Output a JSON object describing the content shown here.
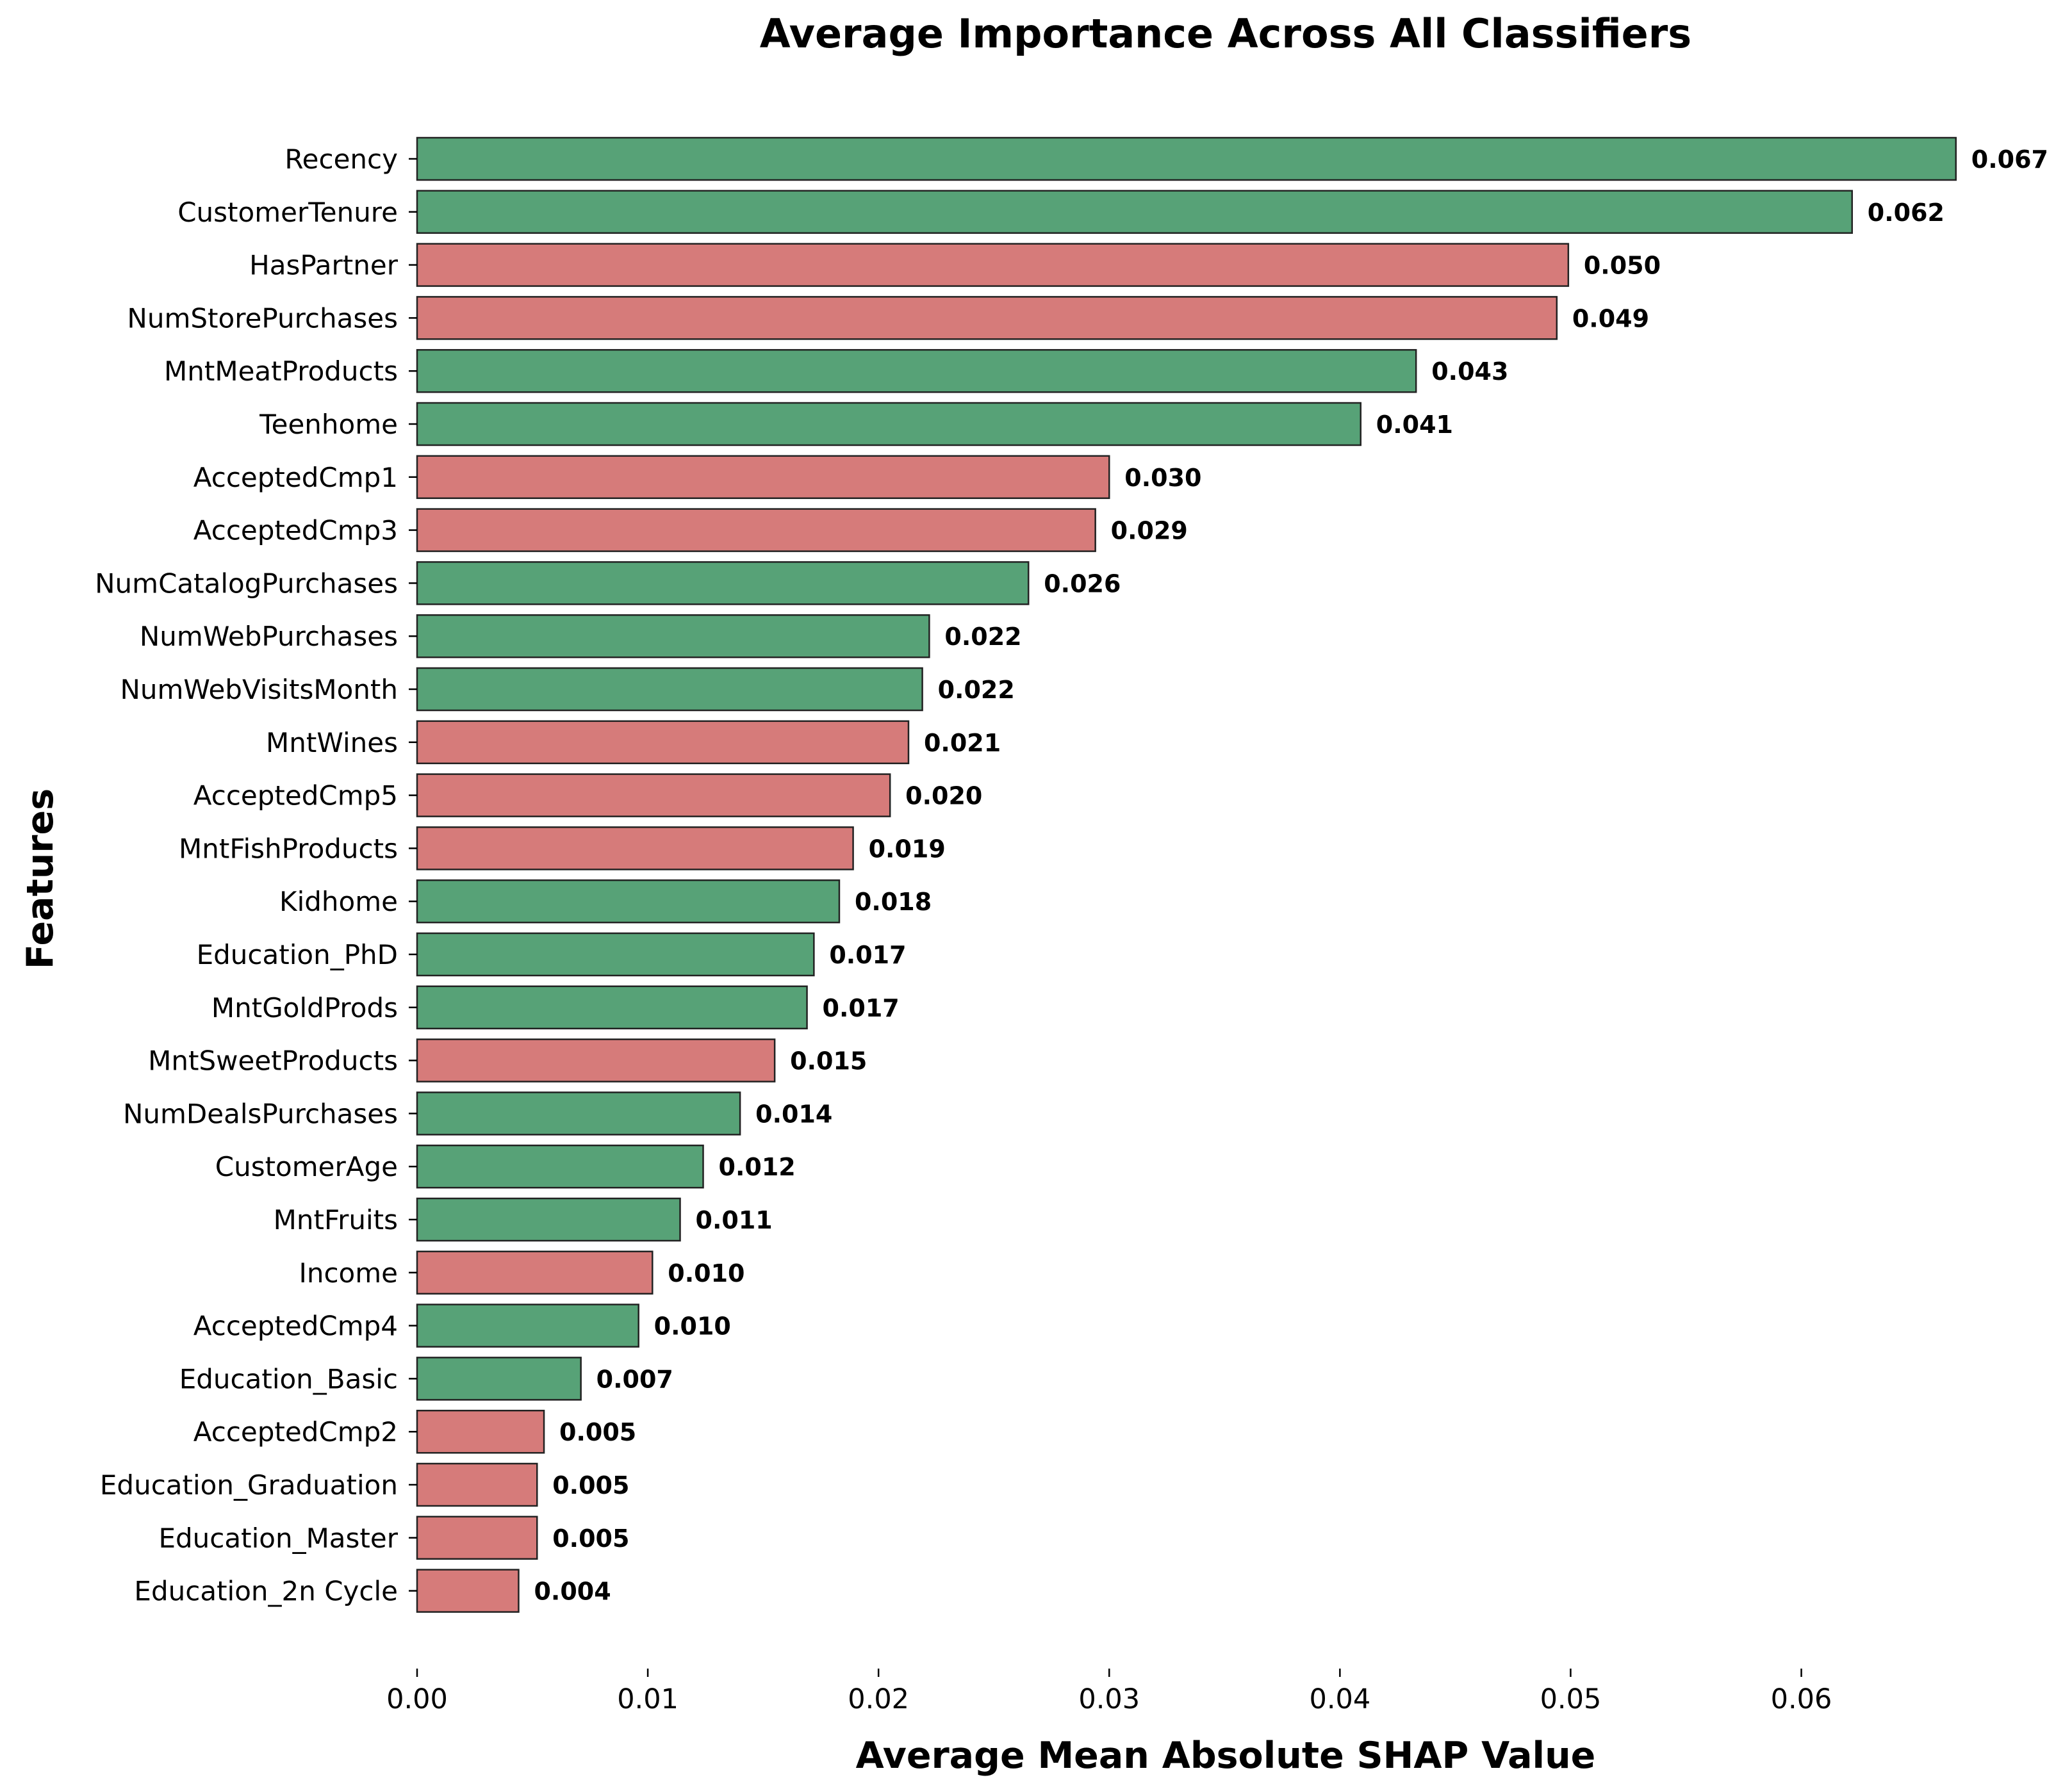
{
  "chart_data": {
    "type": "bar",
    "orientation": "horizontal",
    "title": "Average Importance Across All Classifiers",
    "xlabel": "Average Mean Absolute SHAP Value",
    "ylabel": "Features",
    "xlim": [
      0,
      0.0669
    ],
    "xticks": [
      "0.00",
      "0.01",
      "0.02",
      "0.03",
      "0.04",
      "0.05",
      "0.06"
    ],
    "grid": false,
    "colors": {
      "positive": "#57a277",
      "negative": "#d67b7a",
      "edge": "#222222"
    },
    "bars": [
      {
        "label": "Recency",
        "value": 0.0667,
        "text": "0.067",
        "color": "positive"
      },
      {
        "label": "CustomerTenure",
        "value": 0.0622,
        "text": "0.062",
        "color": "positive"
      },
      {
        "label": "HasPartner",
        "value": 0.0499,
        "text": "0.050",
        "color": "negative"
      },
      {
        "label": "NumStorePurchases",
        "value": 0.0494,
        "text": "0.049",
        "color": "negative"
      },
      {
        "label": "MntMeatProducts",
        "value": 0.0433,
        "text": "0.043",
        "color": "positive"
      },
      {
        "label": "Teenhome",
        "value": 0.0409,
        "text": "0.041",
        "color": "positive"
      },
      {
        "label": "AcceptedCmp1",
        "value": 0.03,
        "text": "0.030",
        "color": "negative"
      },
      {
        "label": "AcceptedCmp3",
        "value": 0.0294,
        "text": "0.029",
        "color": "negative"
      },
      {
        "label": "NumCatalogPurchases",
        "value": 0.0265,
        "text": "0.026",
        "color": "positive"
      },
      {
        "label": "NumWebPurchases",
        "value": 0.0222,
        "text": "0.022",
        "color": "positive"
      },
      {
        "label": "NumWebVisitsMonth",
        "value": 0.0219,
        "text": "0.022",
        "color": "positive"
      },
      {
        "label": "MntWines",
        "value": 0.0213,
        "text": "0.021",
        "color": "negative"
      },
      {
        "label": "AcceptedCmp5",
        "value": 0.0205,
        "text": "0.020",
        "color": "negative"
      },
      {
        "label": "MntFishProducts",
        "value": 0.0189,
        "text": "0.019",
        "color": "negative"
      },
      {
        "label": "Kidhome",
        "value": 0.0183,
        "text": "0.018",
        "color": "positive"
      },
      {
        "label": "Education_PhD",
        "value": 0.0172,
        "text": "0.017",
        "color": "positive"
      },
      {
        "label": "MntGoldProds",
        "value": 0.0169,
        "text": "0.017",
        "color": "positive"
      },
      {
        "label": "MntSweetProducts",
        "value": 0.0155,
        "text": "0.015",
        "color": "negative"
      },
      {
        "label": "NumDealsPurchases",
        "value": 0.014,
        "text": "0.014",
        "color": "positive"
      },
      {
        "label": "CustomerAge",
        "value": 0.0124,
        "text": "0.012",
        "color": "positive"
      },
      {
        "label": "MntFruits",
        "value": 0.0114,
        "text": "0.011",
        "color": "positive"
      },
      {
        "label": "Income",
        "value": 0.0102,
        "text": "0.010",
        "color": "negative"
      },
      {
        "label": "AcceptedCmp4",
        "value": 0.0096,
        "text": "0.010",
        "color": "positive"
      },
      {
        "label": "Education_Basic",
        "value": 0.0071,
        "text": "0.007",
        "color": "positive"
      },
      {
        "label": "AcceptedCmp2",
        "value": 0.0055,
        "text": "0.005",
        "color": "negative"
      },
      {
        "label": "Education_Graduation",
        "value": 0.0052,
        "text": "0.005",
        "color": "negative"
      },
      {
        "label": "Education_Master",
        "value": 0.0052,
        "text": "0.005",
        "color": "negative"
      },
      {
        "label": "Education_2n Cycle",
        "value": 0.0044,
        "text": "0.004",
        "color": "negative"
      }
    ]
  }
}
